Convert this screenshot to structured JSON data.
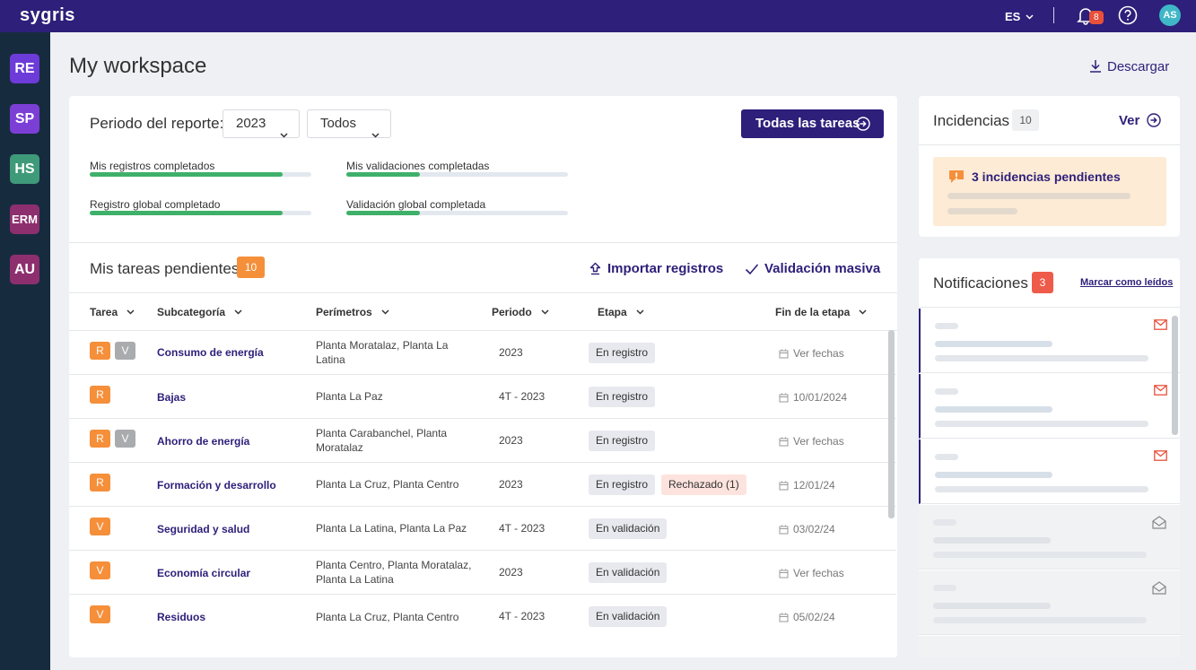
{
  "app": {
    "logo": "sygris",
    "language": "ES",
    "notifications_count": "8",
    "avatar_initials": "AS"
  },
  "sidebar": {
    "modules": [
      {
        "label": "RE",
        "color": "#6d3bd8"
      },
      {
        "label": "SP",
        "color": "#7b3fd6"
      },
      {
        "label": "HS",
        "color": "#3f9a7a"
      },
      {
        "label": "ERM",
        "color": "#8d2f6e"
      },
      {
        "label": "AU",
        "color": "#8d2f6e"
      }
    ]
  },
  "page": {
    "title": "My workspace",
    "download_label": "Descargar"
  },
  "report": {
    "period_label": "Periodo del reporte:",
    "year": "2023",
    "filter": "Todos",
    "all_tasks_label": "Todas las tareas",
    "progress": [
      {
        "label": "Mis registros completados",
        "percent": 87
      },
      {
        "label": "Mis validaciones completadas",
        "percent": 33
      },
      {
        "label": "Registro global completado",
        "percent": 87
      },
      {
        "label": "Validación global completada",
        "percent": 33
      }
    ]
  },
  "tasks": {
    "title": "Mis tareas pendientes",
    "count": "10",
    "import_label": "Importar registros",
    "mass_validation_label": "Validación masiva",
    "columns": [
      "Tarea",
      "Subcategoría",
      "Perímetros",
      "Periodo",
      "Etapa",
      "Fin de la etapa"
    ],
    "rows": [
      {
        "tags": [
          "R",
          "V"
        ],
        "name": "Consumo de energía",
        "perimeters": "Planta Moratalaz, Planta La Latina",
        "period": "2023",
        "stage": "En registro",
        "extra": "",
        "end": "Ver fechas"
      },
      {
        "tags": [
          "R"
        ],
        "name": "Bajas",
        "perimeters": "Planta La Paz",
        "period": "4T - 2023",
        "stage": "En registro",
        "extra": "",
        "end": "10/01/2024"
      },
      {
        "tags": [
          "R",
          "V"
        ],
        "name": "Ahorro de energía",
        "perimeters": "Planta Carabanchel, Planta Moratalaz",
        "period": "2023",
        "stage": "En registro",
        "extra": "",
        "end": "Ver fechas"
      },
      {
        "tags": [
          "R"
        ],
        "name": "Formación y desarrollo",
        "perimeters": "Planta La Cruz, Planta Centro",
        "period": "2023",
        "stage": "En registro",
        "extra": "Rechazado (1)",
        "end": "12/01/24"
      },
      {
        "tags": [
          "V"
        ],
        "name": "Seguridad y salud",
        "perimeters": "Planta La Latina, Planta La Paz",
        "period": "4T - 2023",
        "stage": "En validación",
        "extra": "",
        "end": "03/02/24"
      },
      {
        "tags": [
          "V"
        ],
        "name": "Economía circular",
        "perimeters": "Planta Centro, Planta Moratalaz, Planta La Latina",
        "period": "2023",
        "stage": "En validación",
        "extra": "",
        "end": "Ver fechas"
      },
      {
        "tags": [
          "V"
        ],
        "name": "Residuos",
        "perimeters": "Planta La Cruz, Planta Centro",
        "period": "4T - 2023",
        "stage": "En validación",
        "extra": "",
        "end": "05/02/24"
      }
    ]
  },
  "incidents": {
    "title": "Incidencias",
    "count": "10",
    "view_label": "Ver",
    "alert_text": "3 incidencias pendientes"
  },
  "notifications": {
    "title": "Notificaciones",
    "count": "3",
    "mark_read_label": "Marcar como leídos",
    "items": [
      {
        "unread": true
      },
      {
        "unread": true
      },
      {
        "unread": true
      },
      {
        "unread": false
      },
      {
        "unread": false
      }
    ]
  }
}
